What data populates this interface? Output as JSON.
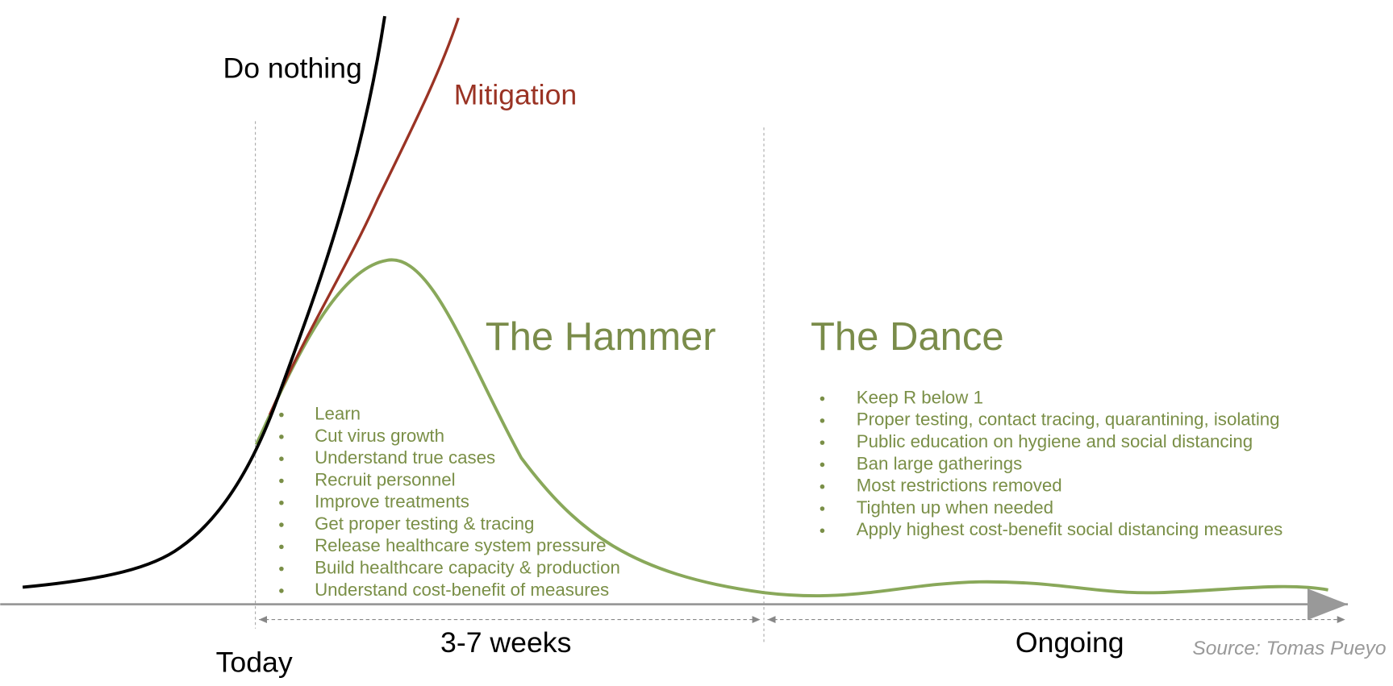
{
  "curves": {
    "do_nothing": "Do nothing",
    "mitigation": "Mitigation"
  },
  "hammer": {
    "title": "The Hammer",
    "items": [
      "Learn",
      "Cut virus growth",
      "Understand true cases",
      "Recruit personnel",
      "Improve treatments",
      "Get proper testing & tracing",
      "Release healthcare system pressure",
      "Build healthcare capacity & production",
      "Understand cost-benefit of measures"
    ]
  },
  "dance": {
    "title": "The Dance",
    "items": [
      "Keep R below 1",
      "Proper testing, contact tracing, quarantining, isolating",
      "Public education on hygiene and social distancing",
      "Ban large gatherings",
      "Most restrictions removed",
      "Tighten up when needed",
      "Apply highest cost-benefit social distancing measures"
    ]
  },
  "timeline": {
    "start": "Today",
    "hammer_duration": "3-7 weeks",
    "dance_duration": "Ongoing"
  },
  "source": "Source: Tomas Pueyo"
}
